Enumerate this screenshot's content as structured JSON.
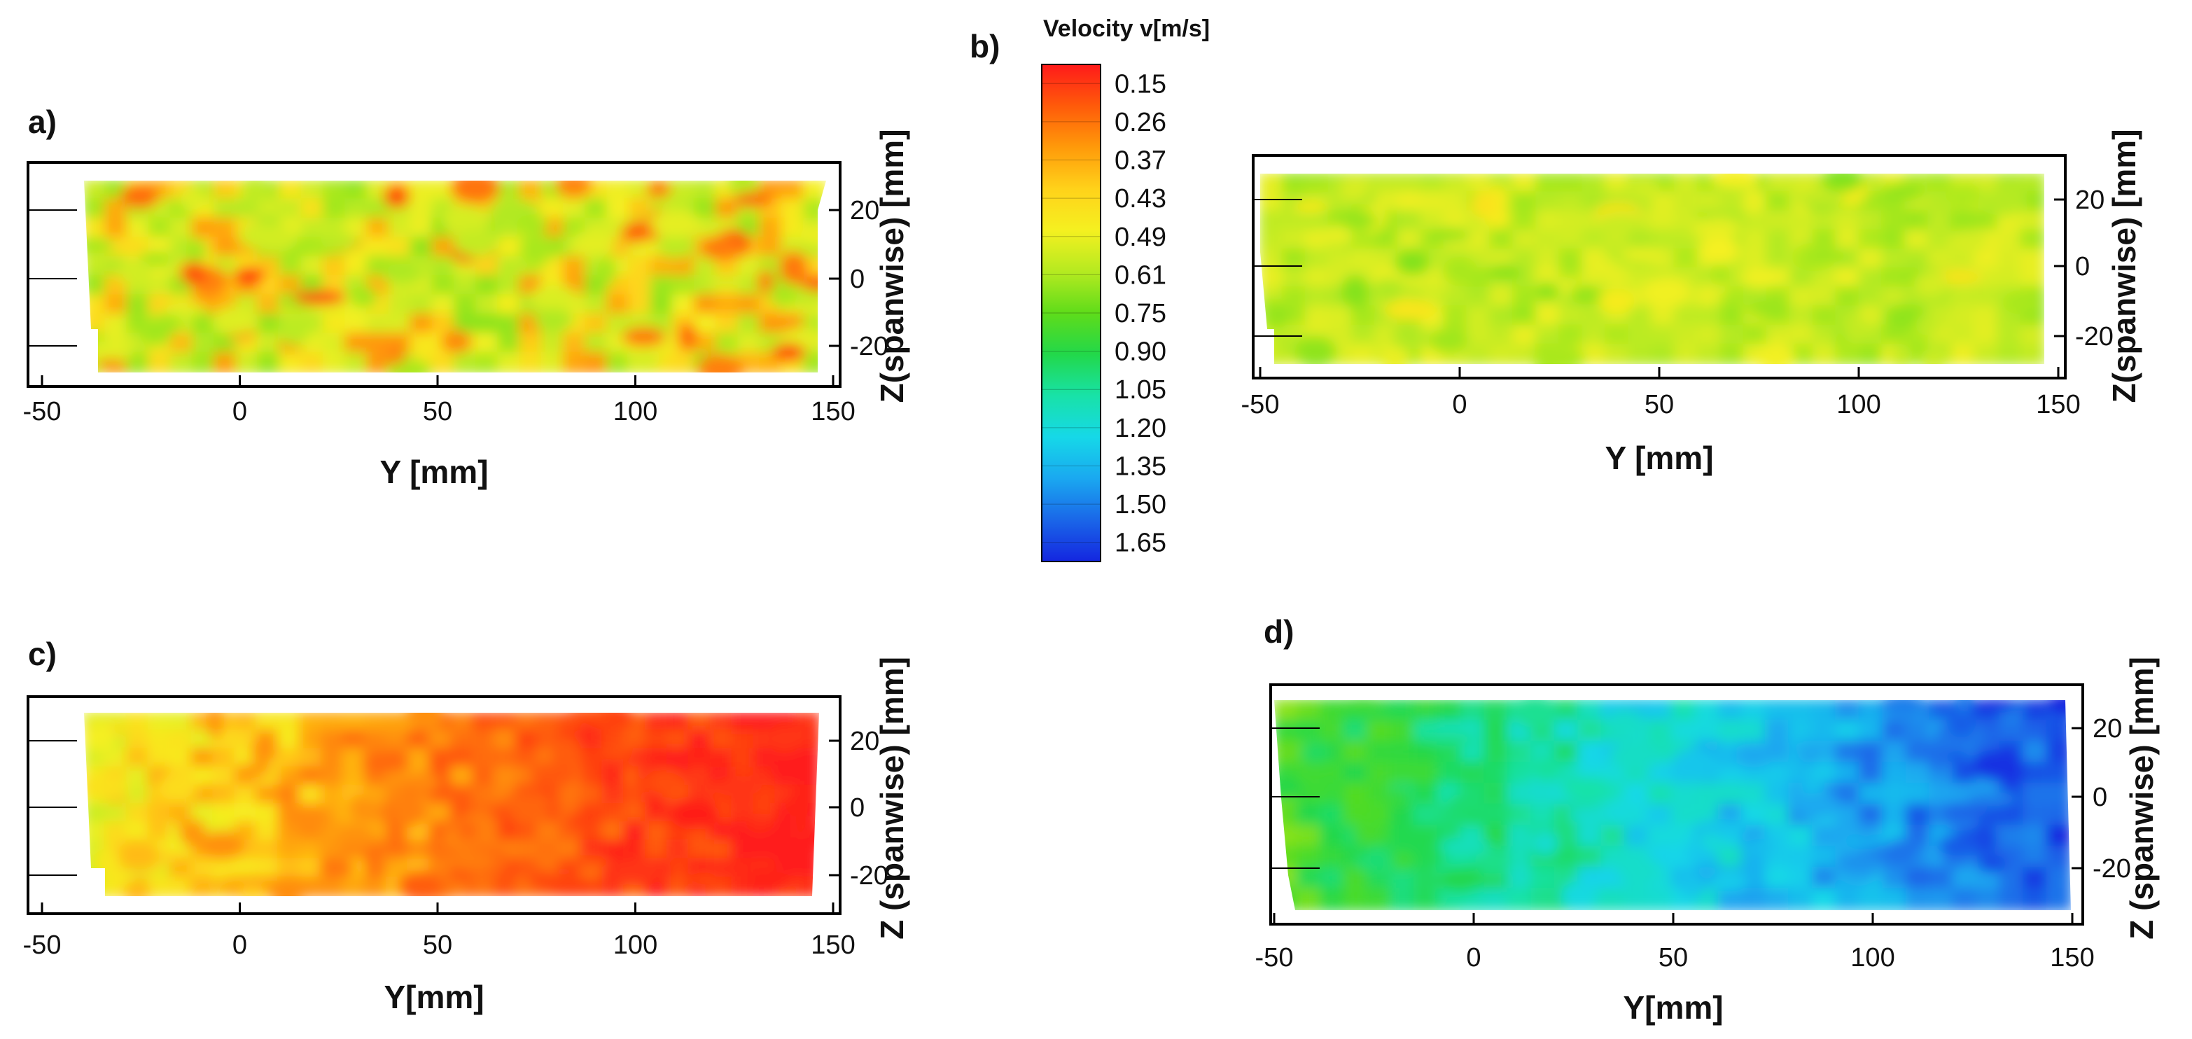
{
  "chart_data": {
    "type": "heatmap",
    "colorbar": {
      "title": "Velocity v[m/s]",
      "levels": [
        "0.15",
        "0.26",
        "0.37",
        "0.43",
        "0.49",
        "0.61",
        "0.75",
        "0.90",
        "1.05",
        "1.20",
        "1.35",
        "1.50",
        "1.65"
      ],
      "colors": [
        "#ff1a1a",
        "#ff5a0a",
        "#ff9a0a",
        "#ffd21a",
        "#f5f020",
        "#b5ea20",
        "#5fdc1a",
        "#22d84a",
        "#18e2a8",
        "#16d8e8",
        "#1aa8f0",
        "#1a66e8",
        "#1426e0"
      ]
    },
    "panels": [
      {
        "id": "a",
        "label": "a)",
        "xlabel": "Y [mm]",
        "ylabel": "Z(spanwise) [mm]",
        "xticks": [
          "-50",
          "0",
          "50",
          "100",
          "150"
        ],
        "yticks": [
          "20",
          "0",
          "-20"
        ],
        "xlim": [
          -50,
          150
        ],
        "ylim": [
          -30,
          30
        ],
        "mean_velocity": 0.52,
        "gradient": 0.0,
        "noise": 0.16
      },
      {
        "id": "b",
        "label": "b)",
        "xlabel": "Y [mm]",
        "ylabel": "Z(spanwise) [mm]",
        "xticks": [
          "-50",
          "0",
          "50",
          "100",
          "150"
        ],
        "yticks": [
          "20",
          "0",
          "-20"
        ],
        "xlim": [
          -50,
          150
        ],
        "ylim": [
          -30,
          30
        ],
        "mean_velocity": 0.58,
        "gradient": 0.0,
        "noise": 0.08
      },
      {
        "id": "c",
        "label": "c)",
        "xlabel": "Y[mm]",
        "ylabel": "Z (spanwise) [mm]",
        "xticks": [
          "-50",
          "0",
          "50",
          "100",
          "150"
        ],
        "yticks": [
          "20",
          "0",
          "-20"
        ],
        "xlim": [
          -50,
          150
        ],
        "ylim": [
          -30,
          30
        ],
        "mean_velocity": 0.4,
        "gradient": -0.28,
        "noise": 0.1
      },
      {
        "id": "d",
        "label": "d)",
        "xlabel": "Y[mm]",
        "ylabel": "Z (spanwise) [mm]",
        "xticks": [
          "-50",
          "0",
          "50",
          "100",
          "150"
        ],
        "yticks": [
          "20",
          "0",
          "-20"
        ],
        "xlim": [
          -50,
          150
        ],
        "ylim": [
          -30,
          30
        ],
        "mean_velocity": 1.12,
        "gradient": 0.35,
        "noise": 0.12
      }
    ]
  }
}
